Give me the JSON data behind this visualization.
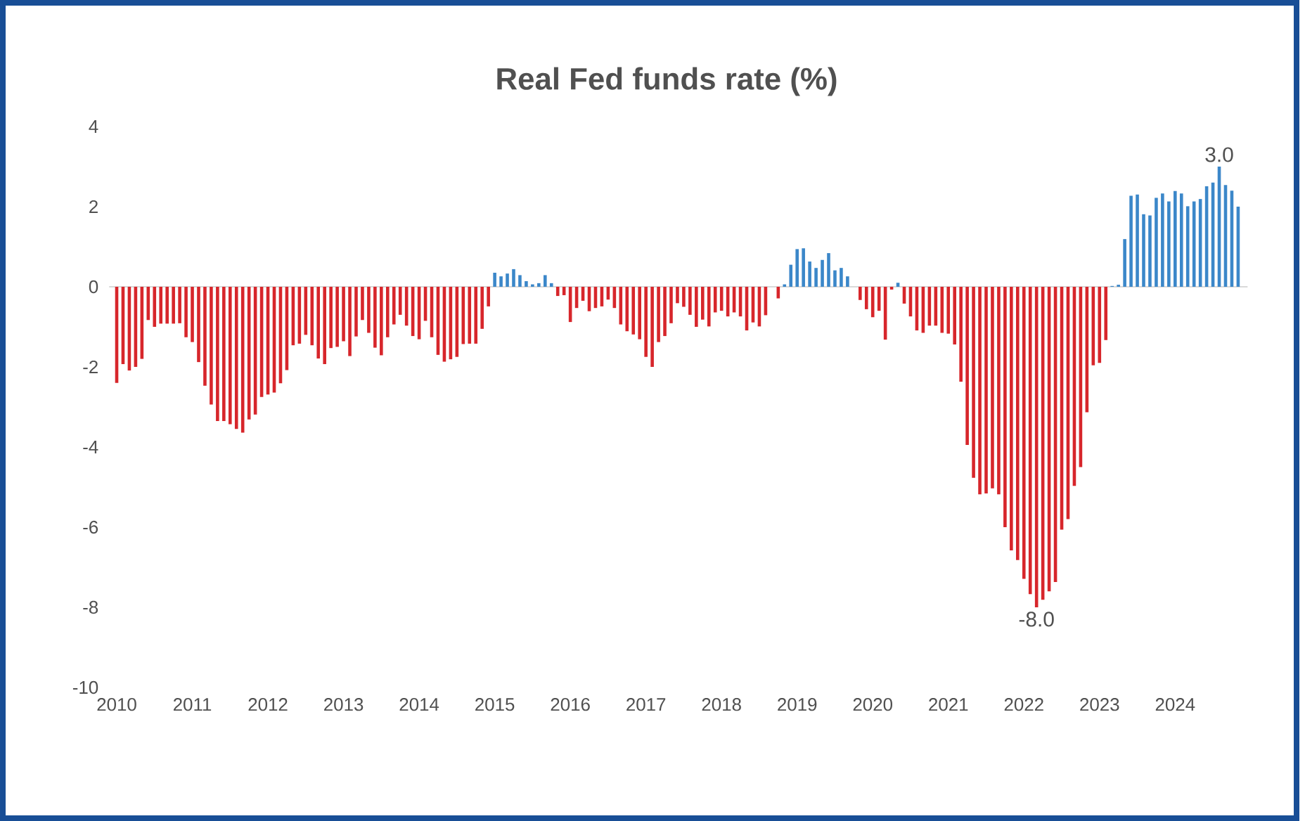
{
  "chart_data": {
    "type": "bar",
    "title": "Real Fed funds rate (%)",
    "categories": [
      "2010",
      null,
      null,
      null,
      null,
      null,
      null,
      null,
      null,
      null,
      null,
      null,
      "2011",
      null,
      null,
      null,
      null,
      null,
      null,
      null,
      null,
      null,
      null,
      null,
      "2012",
      null,
      null,
      null,
      null,
      null,
      null,
      null,
      null,
      null,
      null,
      null,
      "2013",
      null,
      null,
      null,
      null,
      null,
      null,
      null,
      null,
      null,
      null,
      null,
      "2014",
      null,
      null,
      null,
      null,
      null,
      null,
      null,
      null,
      null,
      null,
      null,
      "2015",
      null,
      null,
      null,
      null,
      null,
      null,
      null,
      null,
      null,
      null,
      null,
      "2016",
      null,
      null,
      null,
      null,
      null,
      null,
      null,
      null,
      null,
      null,
      null,
      "2017",
      null,
      null,
      null,
      null,
      null,
      null,
      null,
      null,
      null,
      null,
      null,
      "2018",
      null,
      null,
      null,
      null,
      null,
      null,
      null,
      null,
      null,
      null,
      null,
      "2019",
      null,
      null,
      null,
      null,
      null,
      null,
      null,
      null,
      null,
      null,
      null,
      "2020",
      null,
      null,
      null,
      null,
      null,
      null,
      null,
      null,
      null,
      null,
      null,
      "2021",
      null,
      null,
      null,
      null,
      null,
      null,
      null,
      null,
      null,
      null,
      null,
      "2022",
      null,
      null,
      null,
      null,
      null,
      null,
      null,
      null,
      null,
      null,
      null,
      "2023",
      null,
      null,
      null,
      null,
      null,
      null,
      null,
      null,
      null,
      null,
      null,
      "2024",
      null,
      null,
      null,
      null,
      null,
      null,
      null,
      null,
      null,
      null
    ],
    "values": [
      -2.4,
      -1.93,
      -2.09,
      -2.0,
      -1.8,
      -0.83,
      -1.0,
      -0.92,
      -0.92,
      -0.92,
      -0.91,
      -1.26,
      -1.38,
      -1.88,
      -2.47,
      -2.94,
      -3.35,
      -3.35,
      -3.43,
      -3.55,
      -3.64,
      -3.31,
      -3.19,
      -2.75,
      -2.69,
      -2.64,
      -2.41,
      -2.08,
      -1.46,
      -1.42,
      -1.2,
      -1.46,
      -1.79,
      -1.93,
      -1.53,
      -1.5,
      -1.36,
      -1.73,
      -1.24,
      -0.83,
      -1.15,
      -1.52,
      -1.71,
      -1.26,
      -0.94,
      -0.7,
      -0.97,
      -1.23,
      -1.31,
      -0.85,
      -1.26,
      -1.7,
      -1.87,
      -1.81,
      -1.75,
      -1.43,
      -1.42,
      -1.42,
      -1.05,
      -0.49,
      0.35,
      0.26,
      0.33,
      0.44,
      0.29,
      0.14,
      0.06,
      0.09,
      0.29,
      0.09,
      -0.23,
      -0.21,
      -0.88,
      -0.53,
      -0.35,
      -0.61,
      -0.53,
      -0.49,
      -0.32,
      -0.53,
      -0.94,
      -1.11,
      -1.19,
      -1.31,
      -1.75,
      -2.0,
      -1.38,
      -1.23,
      -0.91,
      -0.41,
      -0.5,
      -0.7,
      -1.0,
      -0.82,
      -0.99,
      -0.64,
      -0.6,
      -0.74,
      -0.64,
      -0.74,
      -1.09,
      -0.89,
      -0.99,
      -0.71,
      0,
      -0.29,
      0.06,
      0.55,
      0.94,
      0.96,
      0.63,
      0.47,
      0.67,
      0.84,
      0.41,
      0.47,
      0.26,
      0,
      -0.33,
      -0.56,
      -0.76,
      -0.6,
      -1.32,
      -0.07,
      0.1,
      -0.42,
      -0.74,
      -1.09,
      -1.15,
      -0.97,
      -0.97,
      -1.15,
      -1.17,
      -1.44,
      -2.37,
      -3.95,
      -4.77,
      -5.18,
      -5.16,
      -5.03,
      -5.18,
      -6.0,
      -6.58,
      -6.82,
      -7.29,
      -7.67,
      -8.0,
      -7.81,
      -7.6,
      -7.37,
      -6.06,
      -5.8,
      -4.97,
      -4.5,
      -3.13,
      -1.96,
      -1.9,
      -1.33,
      0.02,
      0.05,
      1.19,
      2.27,
      2.3,
      1.81,
      1.78,
      2.22,
      2.33,
      2.13,
      2.39,
      2.33,
      2.01,
      2.13,
      2.19,
      2.51,
      2.6,
      3.0,
      2.54,
      2.4,
      2.0
    ],
    "colors": [
      "#d7262b",
      "#d7262b",
      "#d7262b",
      "#d7262b",
      "#d7262b",
      "#d7262b",
      "#d7262b",
      "#d7262b",
      "#d7262b",
      "#d7262b",
      "#d7262b",
      "#d7262b",
      "#d7262b",
      "#d7262b",
      "#d7262b",
      "#d7262b",
      "#d7262b",
      "#d7262b",
      "#d7262b",
      "#d7262b",
      "#d7262b",
      "#d7262b",
      "#d7262b",
      "#d7262b",
      "#d7262b",
      "#d7262b",
      "#d7262b",
      "#d7262b",
      "#d7262b",
      "#d7262b",
      "#d7262b",
      "#d7262b",
      "#d7262b",
      "#d7262b",
      "#d7262b",
      "#d7262b",
      "#d7262b",
      "#d7262b",
      "#d7262b",
      "#d7262b",
      "#d7262b",
      "#d7262b",
      "#d7262b",
      "#d7262b",
      "#d7262b",
      "#d7262b",
      "#d7262b",
      "#d7262b",
      "#d7262b",
      "#d7262b",
      "#d7262b",
      "#d7262b",
      "#d7262b",
      "#d7262b",
      "#d7262b",
      "#d7262b",
      "#d7262b",
      "#d7262b",
      "#d7262b",
      "#d7262b",
      "#3b87c9",
      "#3b87c9",
      "#3b87c9",
      "#3b87c9",
      "#3b87c9",
      "#3b87c9",
      "#3b87c9",
      "#3b87c9",
      "#3b87c9",
      "#3b87c9",
      "#d7262b",
      "#d7262b",
      "#d7262b",
      "#d7262b",
      "#d7262b",
      "#d7262b",
      "#d7262b",
      "#d7262b",
      "#d7262b",
      "#d7262b",
      "#d7262b",
      "#d7262b",
      "#d7262b",
      "#d7262b",
      "#d7262b",
      "#d7262b",
      "#d7262b",
      "#d7262b",
      "#d7262b",
      "#d7262b",
      "#d7262b",
      "#d7262b",
      "#d7262b",
      "#d7262b",
      "#d7262b",
      "#d7262b",
      "#d7262b",
      "#d7262b",
      "#d7262b",
      "#d7262b",
      "#d7262b",
      "#d7262b",
      "#d7262b",
      "#d7262b",
      "#d7262b",
      "#d7262b",
      "#3b87c9",
      "#3b87c9",
      "#3b87c9",
      "#3b87c9",
      "#3b87c9",
      "#3b87c9",
      "#3b87c9",
      "#3b87c9",
      "#3b87c9",
      "#3b87c9",
      "#3b87c9",
      "#3b87c9",
      "#d7262b",
      "#d7262b",
      "#d7262b",
      "#d7262b",
      "#d7262b",
      "#d7262b",
      "#3b87c9",
      "#d7262b",
      "#d7262b",
      "#d7262b",
      "#d7262b",
      "#d7262b",
      "#d7262b",
      "#d7262b",
      "#d7262b",
      "#d7262b",
      "#d7262b",
      "#d7262b",
      "#d7262b",
      "#d7262b",
      "#d7262b",
      "#d7262b",
      "#d7262b",
      "#d7262b",
      "#d7262b",
      "#d7262b",
      "#d7262b",
      "#d7262b",
      "#d7262b",
      "#d7262b",
      "#d7262b",
      "#d7262b",
      "#d7262b",
      "#d7262b",
      "#d7262b",
      "#d7262b",
      "#d7262b",
      "#d7262b",
      "#d7262b",
      "#d7262b",
      "#3b87c9",
      "#3b87c9",
      "#3b87c9",
      "#3b87c9",
      "#3b87c9",
      "#3b87c9",
      "#3b87c9",
      "#3b87c9",
      "#3b87c9",
      "#3b87c9",
      "#3b87c9",
      "#3b87c9",
      "#3b87c9",
      "#3b87c9",
      "#3b87c9",
      "#3b87c9",
      "#3b87c9",
      "#3b87c9",
      "#3b87c9",
      "#3b87c9",
      "#3b87c9"
    ],
    "value_labels": [
      null,
      null,
      null,
      null,
      null,
      null,
      null,
      null,
      null,
      null,
      null,
      null,
      null,
      null,
      null,
      null,
      null,
      null,
      null,
      null,
      null,
      null,
      null,
      null,
      null,
      null,
      null,
      null,
      null,
      null,
      null,
      null,
      null,
      null,
      null,
      null,
      null,
      null,
      null,
      null,
      null,
      null,
      null,
      null,
      null,
      null,
      null,
      null,
      null,
      null,
      null,
      null,
      null,
      null,
      null,
      null,
      null,
      null,
      null,
      null,
      null,
      null,
      null,
      null,
      null,
      null,
      null,
      null,
      null,
      null,
      null,
      null,
      null,
      null,
      null,
      null,
      null,
      null,
      null,
      null,
      null,
      null,
      null,
      null,
      null,
      null,
      null,
      null,
      null,
      null,
      null,
      null,
      null,
      null,
      null,
      null,
      null,
      null,
      null,
      null,
      null,
      null,
      null,
      null,
      null,
      null,
      null,
      null,
      null,
      null,
      null,
      null,
      null,
      null,
      null,
      null,
      null,
      null,
      null,
      null,
      null,
      null,
      null,
      null,
      null,
      null,
      null,
      null,
      null,
      null,
      null,
      null,
      null,
      null,
      null,
      null,
      null,
      null,
      null,
      null,
      null,
      null,
      null,
      null,
      null,
      null,
      "-8.0",
      null,
      null,
      null,
      null,
      null,
      null,
      null,
      null,
      null,
      null,
      null,
      null,
      null,
      null,
      null,
      null,
      null,
      null,
      null,
      null,
      null,
      null,
      null,
      null,
      null,
      null,
      null,
      null,
      "3.0",
      null,
      null,
      null
    ],
    "ylim": [
      -10,
      4
    ],
    "yticks": [
      -10,
      -8,
      -6,
      -4,
      -2,
      0,
      2,
      4
    ]
  }
}
